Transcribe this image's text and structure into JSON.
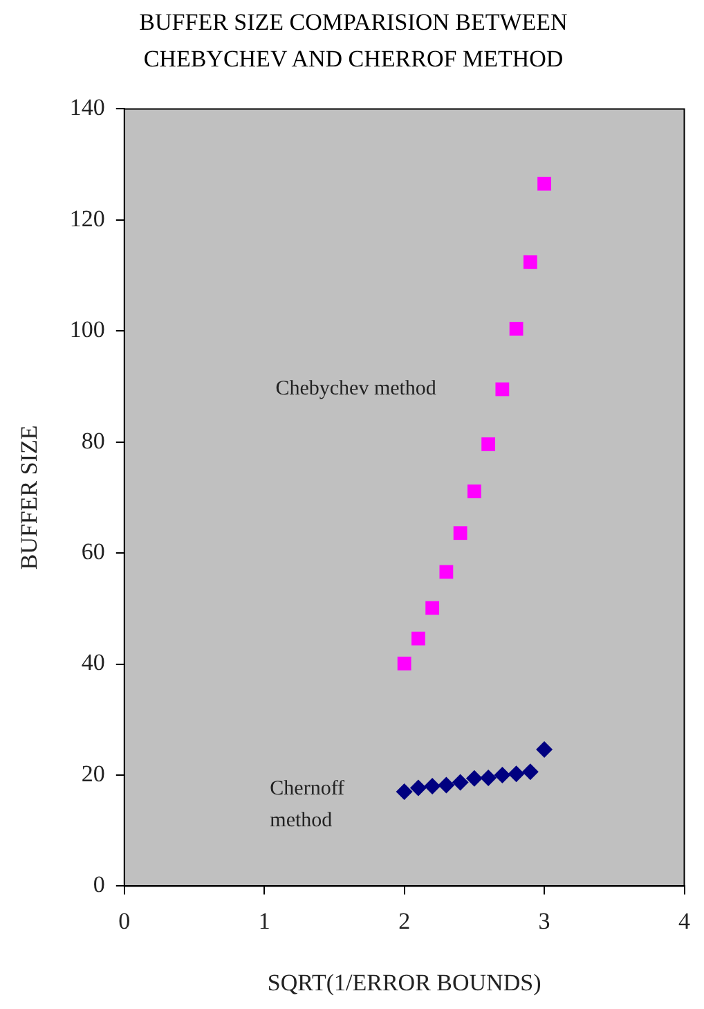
{
  "chart_data": {
    "type": "scatter",
    "title": "BUFFER SIZE COMPARISION BETWEEN\nCHEBYCHEV AND CHERROF METHOD",
    "xlabel": "SQRT(1/ERROR BOUNDS)",
    "ylabel": "BUFFER SIZE",
    "xlim": [
      0,
      4
    ],
    "xticks": [
      0,
      1,
      2,
      3,
      4
    ],
    "ylim": [
      0,
      140
    ],
    "yticks": [
      0,
      20,
      40,
      60,
      80,
      100,
      120,
      140
    ],
    "grid": false,
    "legend": false,
    "series": [
      {
        "name": "Chebychev method",
        "color": "#ff00ff",
        "marker": "square",
        "x": [
          2.0,
          2.1,
          2.2,
          2.3,
          2.4,
          2.5,
          2.6,
          2.7,
          2.8,
          2.9,
          3.0
        ],
        "values": [
          40.1,
          44.6,
          50.1,
          56.6,
          63.6,
          71.1,
          79.6,
          89.5,
          100.4,
          112.4,
          126.5
        ]
      },
      {
        "name": "Chernoff\nmethod",
        "color": "#000080",
        "marker": "diamond",
        "x": [
          2.0,
          2.1,
          2.2,
          2.3,
          2.4,
          2.5,
          2.6,
          2.7,
          2.8,
          2.9,
          3.0
        ],
        "values": [
          17.0,
          17.7,
          18.0,
          18.2,
          18.7,
          19.4,
          19.5,
          20.0,
          20.2,
          20.6,
          24.6
        ]
      }
    ]
  }
}
